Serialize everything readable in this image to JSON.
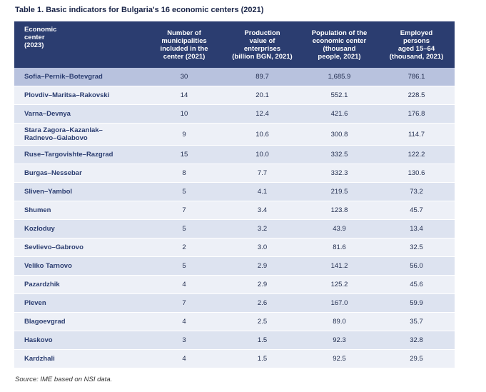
{
  "title": "Table 1. Basic indicators for Bulgaria's 16 economic centers (2021)",
  "headers": [
    "Economic\ncenter\n(2023)",
    "Number of\nmunicipalities\nincluded in the\ncenter (2021)",
    "Production\nvalue of\nenterprises\n(billion BGN, 2021)",
    "Population of the\neconomic center\n(thousand\npeople, 2021)",
    "Employed\npersons\naged 15–64\n(thousand, 2021)"
  ],
  "rows": [
    {
      "name": "Sofia–Pernik–Botevgrad",
      "municipalities": "30",
      "production": "89.7",
      "population": "1,685.9",
      "employed": "786.1"
    },
    {
      "name": "Plovdiv–Maritsa–Rakovski",
      "municipalities": "14",
      "production": "20.1",
      "population": "552.1",
      "employed": "228.5"
    },
    {
      "name": "Varna–Devnya",
      "municipalities": "10",
      "production": "12.4",
      "population": "421.6",
      "employed": "176.8"
    },
    {
      "name": "Stara Zagora–Kazanlak–\nRadnevo–Galabovo",
      "municipalities": "9",
      "production": "10.6",
      "population": "300.8",
      "employed": "114.7"
    },
    {
      "name": "Ruse–Targovishte–Razgrad",
      "municipalities": "15",
      "production": "10.0",
      "population": "332.5",
      "employed": "122.2"
    },
    {
      "name": "Burgas–Nessebar",
      "municipalities": "8",
      "production": "7.7",
      "population": "332.3",
      "employed": "130.6"
    },
    {
      "name": "Sliven–Yambol",
      "municipalities": "5",
      "production": "4.1",
      "population": "219.5",
      "employed": "73.2"
    },
    {
      "name": "Shumen",
      "municipalities": "7",
      "production": "3.4",
      "population": "123.8",
      "employed": "45.7"
    },
    {
      "name": "Kozloduy",
      "municipalities": "5",
      "production": "3.2",
      "population": "43.9",
      "employed": "13.4"
    },
    {
      "name": "Sevlievo–Gabrovo",
      "municipalities": "2",
      "production": "3.0",
      "population": "81.6",
      "employed": "32.5"
    },
    {
      "name": "Veliko Tarnovo",
      "municipalities": "5",
      "production": "2.9",
      "population": "141.2",
      "employed": "56.0"
    },
    {
      "name": "Pazardzhik",
      "municipalities": "4",
      "production": "2.9",
      "population": "125.2",
      "employed": "45.6"
    },
    {
      "name": "Pleven",
      "municipalities": "7",
      "production": "2.6",
      "population": "167.0",
      "employed": "59.9"
    },
    {
      "name": "Blagoevgrad",
      "municipalities": "4",
      "production": "2.5",
      "population": "89.0",
      "employed": "35.7"
    },
    {
      "name": "Haskovo",
      "municipalities": "3",
      "production": "1.5",
      "population": "92.3",
      "employed": "32.8"
    },
    {
      "name": "Kardzhali",
      "municipalities": "4",
      "production": "1.5",
      "population": "92.5",
      "employed": "29.5"
    }
  ],
  "source": "Source: IME based on NSI data."
}
